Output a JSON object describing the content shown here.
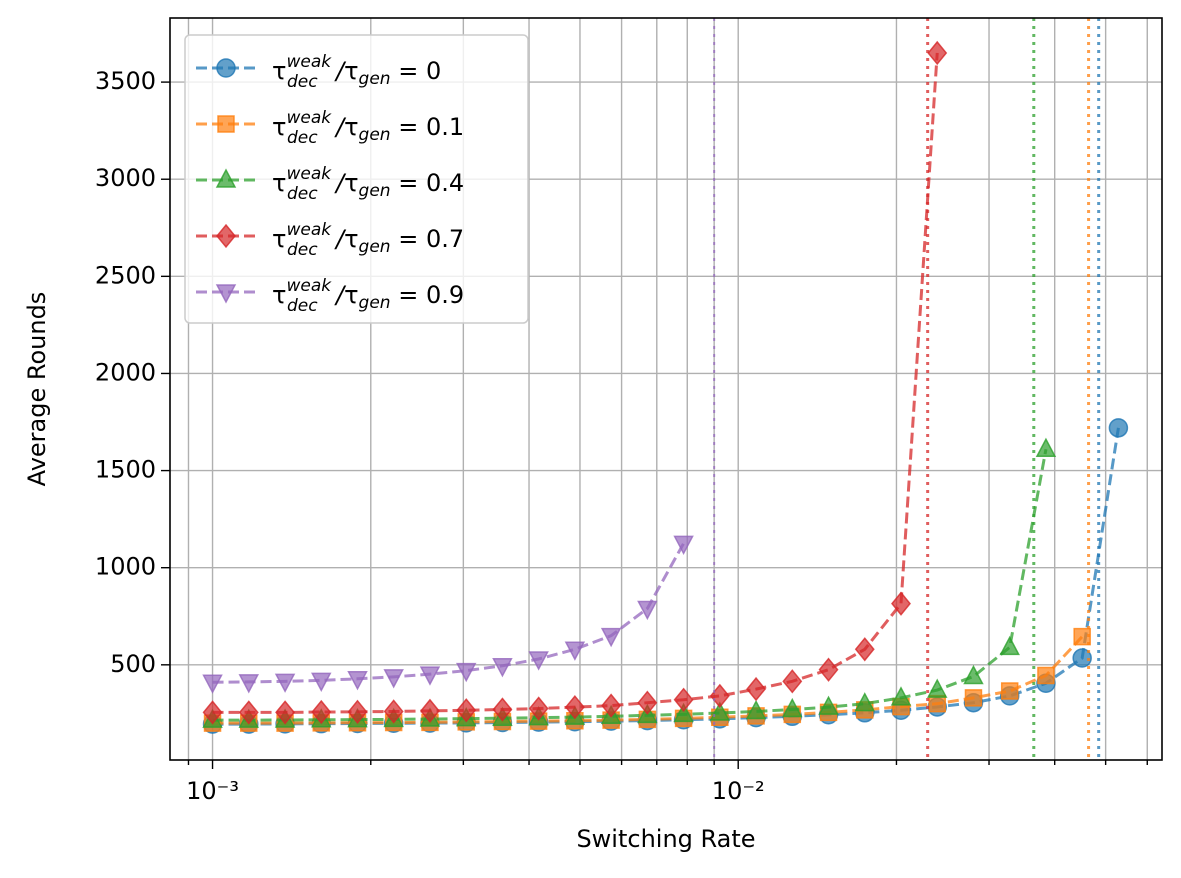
{
  "chart_data": {
    "type": "line",
    "x_label": "Switching Rate",
    "y_label": "Average Rounds",
    "xscale": "log",
    "grid": true,
    "legend": "upper left",
    "x": [
      0.001,
      0.001172,
      0.001374,
      0.00161,
      0.001887,
      0.002211,
      0.002592,
      0.003038,
      0.00356,
      0.004172,
      0.00489,
      0.005731,
      0.006717,
      0.007872,
      0.009226,
      0.010813,
      0.012673,
      0.014853,
      0.017408,
      0.020402,
      0.023911,
      0.028024,
      0.032845,
      0.038494,
      0.045115,
      0.052875
    ],
    "xlim": [
      0.00083,
      0.064
    ],
    "xticks": [
      {
        "value": 0.001,
        "label": "10⁻³"
      },
      {
        "value": 0.01,
        "label": "10⁻²"
      }
    ],
    "xminor": [
      0.0009,
      0.002,
      0.003,
      0.004,
      0.005,
      0.006,
      0.007,
      0.008,
      0.009,
      0.02,
      0.03,
      0.04,
      0.05,
      0.06
    ],
    "ylim": [
      10,
      3830
    ],
    "yticks": [
      500,
      1000,
      1500,
      2000,
      2500,
      3000,
      3500
    ],
    "series": [
      {
        "name": "τ_dec^weak/τ_gen = 0",
        "color": "#1f77b4",
        "marker": "circle",
        "threshold": 0.0485,
        "values": [
          195,
          195,
          196,
          197,
          198,
          199,
          200,
          201,
          203,
          205,
          207,
          210,
          213,
          217,
          222,
          228,
          235,
          243,
          253,
          266,
          283,
          305,
          340,
          405,
          535,
          1720
        ]
      },
      {
        "name": "τ_dec^weak/τ_gen = 0.1",
        "color": "#ff7f0e",
        "marker": "square",
        "threshold": 0.0464,
        "values": [
          200,
          200,
          200,
          201,
          202,
          203,
          204,
          206,
          208,
          210,
          212,
          215,
          219,
          224,
          230,
          237,
          245,
          255,
          268,
          285,
          300,
          330,
          365,
          445,
          645,
          null
        ]
      },
      {
        "name": "τ_dec^weak/τ_gen = 0.4",
        "color": "#2ca02c",
        "marker": "triangle-up",
        "threshold": 0.0365,
        "values": [
          215,
          215,
          216,
          217,
          218,
          219,
          221,
          223,
          225,
          228,
          231,
          235,
          240,
          245,
          252,
          260,
          270,
          282,
          300,
          330,
          370,
          440,
          590,
          1610,
          null,
          null
        ]
      },
      {
        "name": "τ_dec^weak/τ_gen = 0.7",
        "color": "#d62728",
        "marker": "diamond",
        "threshold": 0.02293,
        "values": [
          255,
          255,
          255,
          257,
          258,
          260,
          263,
          266,
          270,
          275,
          282,
          290,
          305,
          320,
          340,
          375,
          415,
          475,
          580,
          815,
          3650,
          null,
          null,
          null,
          null,
          null
        ]
      },
      {
        "name": "τ_dec^weak/τ_gen = 0.9",
        "color": "#9467bd",
        "marker": "triangle-down",
        "threshold": 0.009,
        "values": [
          410,
          412,
          415,
          420,
          428,
          438,
          452,
          470,
          495,
          530,
          580,
          650,
          790,
          1125,
          null,
          null,
          null,
          null,
          null,
          null,
          null,
          null,
          null,
          null,
          null,
          null
        ]
      }
    ]
  }
}
